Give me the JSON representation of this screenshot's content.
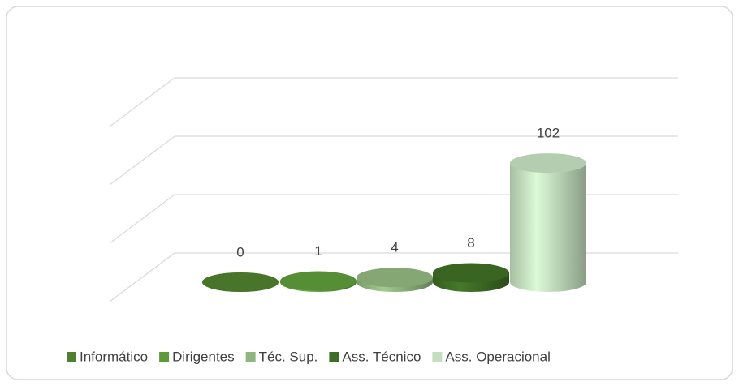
{
  "chart_data": {
    "type": "cylinder",
    "categories": [
      null
    ],
    "series": [
      {
        "name": "Informático",
        "color": "#4f7f2f",
        "values": [
          0
        ]
      },
      {
        "name": "Dirigentes",
        "color": "#5e9a3a",
        "values": [
          1
        ]
      },
      {
        "name": "Téc. Sup.",
        "color": "#8fb67e",
        "values": [
          4
        ]
      },
      {
        "name": "Ass. Técnico",
        "color": "#3e6d25",
        "values": [
          8
        ]
      },
      {
        "name": "Ass. Operacional",
        "color": "#c4dfbf",
        "values": [
          102
        ]
      }
    ],
    "ylim": [
      0,
      150
    ],
    "yticks": [
      0,
      50,
      100,
      150
    ],
    "grid": true,
    "legend": "bottom"
  }
}
